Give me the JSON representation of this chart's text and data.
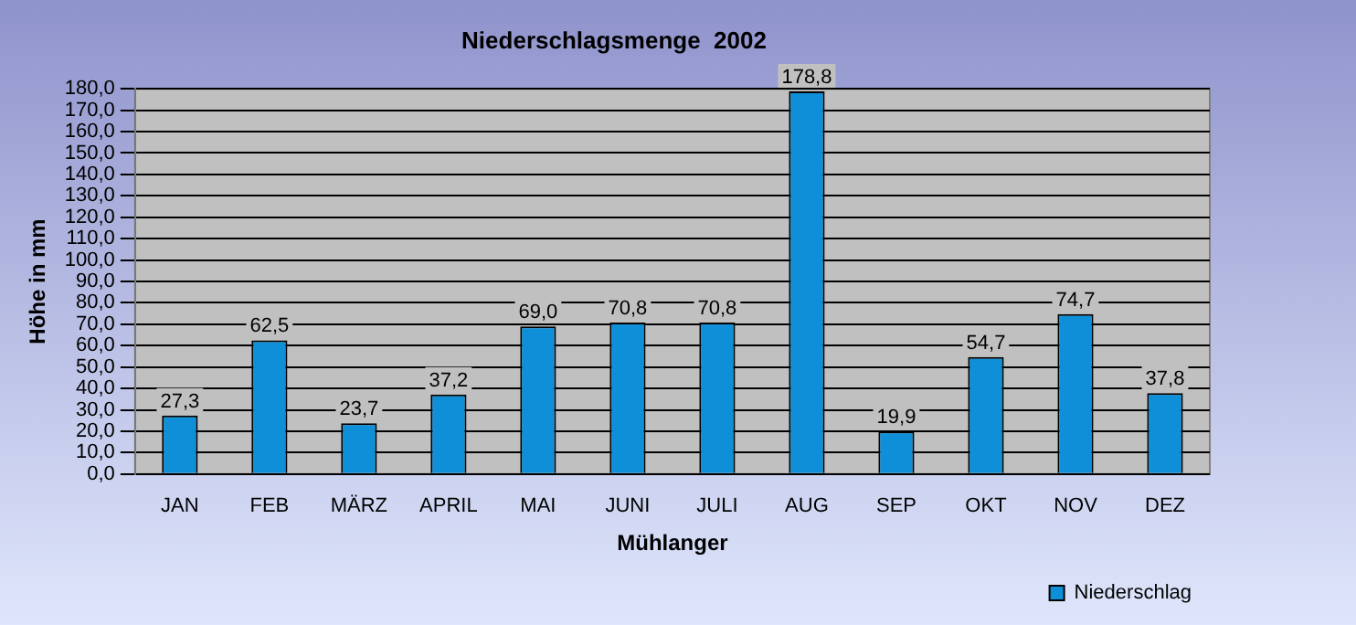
{
  "chart_data": {
    "type": "bar",
    "title": "Niederschlagsmenge  2002",
    "xlabel": "Mühlanger",
    "ylabel": "Höhe in mm",
    "categories": [
      "JAN",
      "FEB",
      "MÄRZ",
      "APRIL",
      "MAI",
      "JUNI",
      "JULI",
      "AUG",
      "SEP",
      "OKT",
      "NOV",
      "DEZ"
    ],
    "series": [
      {
        "name": "Niederschlag",
        "color": "#0f8fd8",
        "values": [
          27.3,
          62.5,
          23.7,
          37.2,
          69.0,
          70.8,
          70.8,
          178.8,
          19.9,
          54.7,
          74.7,
          37.8
        ],
        "value_labels": [
          "27,3",
          "62,5",
          "23,7",
          "37,2",
          "69,0",
          "70,8",
          "70,8",
          "178,8",
          "19,9",
          "54,7",
          "74,7",
          "37,8"
        ]
      }
    ],
    "ylim": [
      0,
      180
    ],
    "yticks": [
      {
        "value": 0,
        "label": "0,0"
      },
      {
        "value": 10,
        "label": "10,0"
      },
      {
        "value": 20,
        "label": "20,0"
      },
      {
        "value": 30,
        "label": "30,0"
      },
      {
        "value": 40,
        "label": "40,0"
      },
      {
        "value": 50,
        "label": "50,0"
      },
      {
        "value": 60,
        "label": "60,0"
      },
      {
        "value": 70,
        "label": "70,0"
      },
      {
        "value": 80,
        "label": "80,0"
      },
      {
        "value": 90,
        "label": "90,0"
      },
      {
        "value": 100,
        "label": "100,0"
      },
      {
        "value": 110,
        "label": "110,0"
      },
      {
        "value": 120,
        "label": "120,0"
      },
      {
        "value": 130,
        "label": "130,0"
      },
      {
        "value": 140,
        "label": "140,0"
      },
      {
        "value": 150,
        "label": "150,0"
      },
      {
        "value": 160,
        "label": "160,0"
      },
      {
        "value": 170,
        "label": "170,0"
      },
      {
        "value": 180,
        "label": "180,0"
      }
    ],
    "grid": "y",
    "legend": "bottom right"
  }
}
